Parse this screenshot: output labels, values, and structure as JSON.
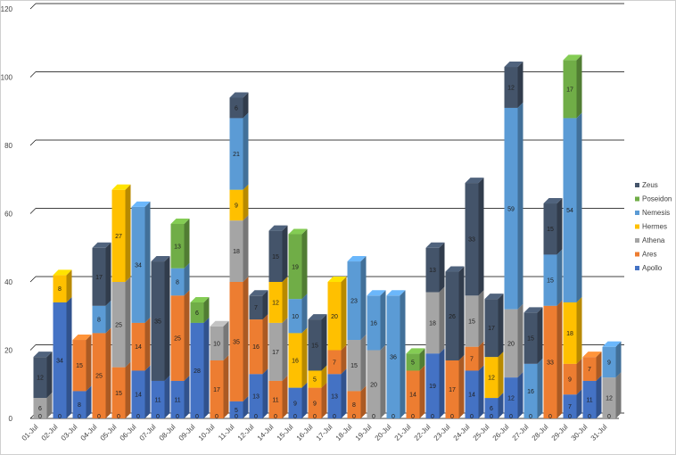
{
  "chart_data": {
    "type": "bar",
    "stacked": true,
    "three_d": true,
    "categories": [
      "01-Jul",
      "02-Jul",
      "03-Jul",
      "04-Jul",
      "05-Jul",
      "06-Jul",
      "07-Jul",
      "08-Jul",
      "09-Jul",
      "10-Jul",
      "11-Jul",
      "12-Jul",
      "14-Jul",
      "15-Jul",
      "16-Jul",
      "17-Jul",
      "18-Jul",
      "19-Jul",
      "20-Jul",
      "21-Jul",
      "22-Jul",
      "23-Jul",
      "24-Jul",
      "25-Jul",
      "26-Jul",
      "27-Jul",
      "28-Jul",
      "29-Jul",
      "30-Jul",
      "31-Jul"
    ],
    "series": [
      {
        "name": "Apollo",
        "color": "#4472C4",
        "values": [
          0,
          34,
          8,
          0,
          0,
          14,
          11,
          11,
          28,
          0,
          5,
          13,
          0,
          9,
          0,
          13,
          0,
          0,
          0,
          0,
          19,
          0,
          14,
          6,
          12,
          0,
          0,
          7,
          11,
          0
        ]
      },
      {
        "name": "Ares",
        "color": "#ED7D31",
        "values": [
          0,
          0,
          15,
          25,
          15,
          14,
          0,
          25,
          0,
          17,
          35,
          16,
          11,
          0,
          9,
          7,
          8,
          0,
          0,
          14,
          0,
          17,
          7,
          0,
          0,
          0,
          33,
          9,
          7,
          0
        ]
      },
      {
        "name": "Athena",
        "color": "#A5A5A5",
        "values": [
          6,
          0,
          0,
          0,
          25,
          0,
          0,
          0,
          0,
          10,
          18,
          0,
          17,
          0,
          0,
          0,
          15,
          20,
          0,
          0,
          18,
          0,
          15,
          0,
          20,
          0,
          0,
          0,
          0,
          12
        ]
      },
      {
        "name": "Hermes",
        "color": "#FFC000",
        "values": [
          0,
          8,
          0,
          0,
          27,
          0,
          0,
          0,
          0,
          0,
          9,
          0,
          12,
          16,
          5,
          20,
          0,
          0,
          0,
          0,
          0,
          0,
          0,
          12,
          0,
          0,
          0,
          18,
          0,
          0
        ]
      },
      {
        "name": "Nemesis",
        "color": "#5B9BD5",
        "values": [
          0,
          0,
          0,
          8,
          0,
          34,
          0,
          8,
          0,
          0,
          21,
          0,
          0,
          10,
          0,
          0,
          23,
          16,
          36,
          0,
          0,
          0,
          0,
          0,
          59,
          16,
          15,
          54,
          0,
          9
        ]
      },
      {
        "name": "Poseidon",
        "color": "#70AD47",
        "values": [
          0,
          0,
          0,
          0,
          0,
          0,
          0,
          13,
          6,
          0,
          0,
          0,
          0,
          19,
          0,
          0,
          0,
          0,
          0,
          5,
          0,
          0,
          0,
          0,
          0,
          0,
          0,
          17,
          0,
          0
        ]
      },
      {
        "name": "Zeus",
        "color": "#44546A",
        "values": [
          12,
          0,
          0,
          17,
          0,
          0,
          35,
          0,
          0,
          0,
          6,
          7,
          15,
          0,
          15,
          0,
          0,
          0,
          0,
          0,
          13,
          26,
          33,
          17,
          12,
          15,
          15,
          0,
          0,
          0
        ]
      }
    ],
    "data_label_cells": [
      [
        [
          "0",
          ""
        ],
        [
          "0",
          ""
        ],
        [
          "6",
          ""
        ],
        [
          "0",
          ""
        ],
        [
          "0",
          ""
        ],
        [
          "0",
          ""
        ],
        [
          "12",
          ""
        ]
      ],
      [
        [
          "34",
          ""
        ],
        [
          "",
          ""
        ],
        [
          "",
          ""
        ],
        [
          "8",
          ""
        ],
        [
          "0",
          ""
        ]
      ],
      [
        [
          "8",
          ""
        ],
        [
          "15",
          ""
        ],
        [
          "0",
          ""
        ]
      ],
      [
        [
          "",
          ""
        ],
        [
          "25",
          ""
        ],
        [
          "0",
          ""
        ],
        [
          "8",
          ""
        ],
        [
          "17",
          ""
        ]
      ],
      [
        [
          "",
          ""
        ],
        [
          "15",
          ""
        ],
        [
          "25",
          ""
        ],
        [
          "27",
          ""
        ],
        [
          "0",
          ""
        ]
      ],
      [
        [
          "14",
          ""
        ],
        [
          "14",
          ""
        ],
        [
          "0",
          ""
        ],
        [
          "34",
          ""
        ],
        [
          "0",
          ""
        ]
      ],
      [
        [
          "11",
          ""
        ],
        [
          "35",
          ""
        ]
      ],
      [
        [
          "11",
          ""
        ],
        [
          "25",
          ""
        ],
        [
          "0",
          ""
        ],
        [
          "8",
          ""
        ],
        [
          "13",
          ""
        ],
        [
          "0",
          ""
        ]
      ],
      [
        [
          "28",
          ""
        ],
        [
          "0",
          ""
        ],
        [
          "6",
          ""
        ],
        [
          "0",
          ""
        ]
      ],
      [
        [
          "17",
          ""
        ],
        [
          "10",
          ""
        ],
        [
          "0",
          ""
        ]
      ],
      [
        [
          "5",
          ""
        ],
        [
          "35",
          ""
        ],
        [
          "18",
          ""
        ],
        [
          "9",
          ""
        ],
        [
          "21",
          ""
        ],
        [
          "0",
          ""
        ],
        [
          "6",
          ""
        ]
      ],
      [
        [
          "13",
          ""
        ],
        [
          "16",
          ""
        ],
        [
          "0",
          ""
        ],
        [
          "7",
          ""
        ]
      ],
      [
        [
          "",
          ""
        ],
        [
          "11",
          ""
        ],
        [
          "17",
          ""
        ],
        [
          "12",
          ""
        ],
        [
          "0",
          ""
        ],
        [
          "15",
          ""
        ]
      ],
      [
        [
          "9",
          ""
        ],
        [
          "0",
          ""
        ],
        [
          "16",
          ""
        ],
        [
          "10",
          ""
        ],
        [
          "19",
          ""
        ],
        [
          "0",
          ""
        ]
      ],
      [
        [
          "",
          ""
        ],
        [
          "9",
          ""
        ],
        [
          "0",
          ""
        ],
        [
          "5",
          ""
        ],
        [
          "0",
          ""
        ],
        [
          "15",
          ""
        ]
      ],
      [
        [
          "13",
          ""
        ],
        [
          "7",
          ""
        ],
        [
          "20",
          ""
        ],
        [
          "0",
          ""
        ]
      ],
      [
        [
          "",
          ""
        ],
        [
          "8",
          ""
        ],
        [
          "15",
          ""
        ],
        [
          "0",
          ""
        ],
        [
          "23",
          ""
        ],
        [
          "0",
          ""
        ]
      ],
      [
        [
          "0",
          ""
        ],
        [
          "20",
          ""
        ],
        [
          "16",
          ""
        ],
        [
          "0",
          ""
        ]
      ],
      [
        [
          "0",
          ""
        ],
        [
          "36",
          ""
        ],
        [
          "0",
          ""
        ]
      ],
      [
        [
          "0",
          ""
        ],
        [
          "14",
          ""
        ],
        [
          "0",
          ""
        ],
        [
          "5",
          ""
        ],
        [
          "0",
          ""
        ]
      ],
      [
        [
          "19",
          ""
        ],
        [
          "18",
          ""
        ],
        [
          "13",
          ""
        ]
      ],
      [
        [
          "",
          ""
        ],
        [
          "17",
          ""
        ],
        [
          "26",
          ""
        ]
      ],
      [
        [
          "14",
          ""
        ],
        [
          "7",
          ""
        ],
        [
          "15",
          ""
        ],
        [
          "0",
          ""
        ],
        [
          "33",
          ""
        ]
      ],
      [
        [
          "6",
          ""
        ],
        [
          "0",
          ""
        ],
        [
          "12",
          ""
        ],
        [
          "0",
          ""
        ],
        [
          "17",
          ""
        ]
      ],
      [
        [
          "12",
          ""
        ],
        [
          "0",
          ""
        ],
        [
          "20",
          ""
        ],
        [
          "59",
          ""
        ],
        [
          "12",
          ""
        ]
      ],
      [
        [
          "0",
          ""
        ],
        [
          "16",
          ""
        ],
        [
          "0",
          ""
        ],
        [
          "15",
          ""
        ]
      ],
      [
        [
          "0",
          ""
        ],
        [
          "33",
          ""
        ],
        [
          "15",
          ""
        ],
        [
          "0",
          ""
        ],
        [
          "15",
          ""
        ]
      ],
      [
        [
          "7",
          ""
        ],
        [
          "9",
          ""
        ],
        [
          "0",
          ""
        ],
        [
          "18",
          ""
        ],
        [
          "54",
          ""
        ],
        [
          "17",
          ""
        ]
      ],
      [
        [
          "11",
          ""
        ],
        [
          "7",
          ""
        ],
        [
          "0",
          ""
        ]
      ],
      [
        [
          "0",
          ""
        ],
        [
          "12",
          ""
        ],
        [
          "9",
          ""
        ],
        [
          "0",
          ""
        ]
      ]
    ],
    "ylim": [
      0,
      120
    ],
    "yticks": [
      0,
      20,
      40,
      60,
      80,
      100,
      120
    ],
    "grid": true,
    "legend_position": "right",
    "legend_order": [
      "Zeus",
      "Poseidon",
      "Nemesis",
      "Hermes",
      "Athena",
      "Ares",
      "Apollo"
    ],
    "title": "",
    "xlabel": "",
    "ylabel": ""
  }
}
